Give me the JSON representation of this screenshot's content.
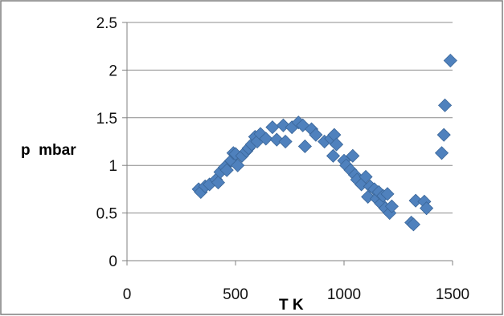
{
  "chart_data": {
    "type": "scatter",
    "title": "",
    "xlabel": "T K",
    "ylabel": "p  mbar",
    "xlim": [
      0,
      1500
    ],
    "ylim": [
      0,
      2.5
    ],
    "x_ticks": [
      "0",
      "500",
      "1000",
      "1500"
    ],
    "y_ticks": [
      "0",
      "0.5",
      "1",
      "1.5",
      "2",
      "2.5"
    ],
    "grid": "horizontal",
    "legend": "none",
    "colors": {
      "marker": "#4F81BD",
      "marker_edge": "#3A6699",
      "grid": "#8C8C8C",
      "axis": "#808080",
      "frame": "#7F7F7F"
    },
    "series": [
      {
        "points": [
          [
            330,
            0.75
          ],
          [
            340,
            0.72
          ],
          [
            360,
            0.78
          ],
          [
            380,
            0.8
          ],
          [
            410,
            0.85
          ],
          [
            420,
            0.82
          ],
          [
            430,
            0.93
          ],
          [
            450,
            0.98
          ],
          [
            460,
            0.95
          ],
          [
            480,
            1.05
          ],
          [
            490,
            1.13
          ],
          [
            500,
            1.12
          ],
          [
            510,
            1.0
          ],
          [
            530,
            1.1
          ],
          [
            550,
            1.15
          ],
          [
            560,
            1.18
          ],
          [
            575,
            1.22
          ],
          [
            590,
            1.3
          ],
          [
            600,
            1.25
          ],
          [
            615,
            1.33
          ],
          [
            640,
            1.28
          ],
          [
            670,
            1.4
          ],
          [
            690,
            1.27
          ],
          [
            720,
            1.42
          ],
          [
            730,
            1.25
          ],
          [
            760,
            1.4
          ],
          [
            790,
            1.45
          ],
          [
            810,
            1.42
          ],
          [
            820,
            1.2
          ],
          [
            850,
            1.38
          ],
          [
            870,
            1.32
          ],
          [
            910,
            1.25
          ],
          [
            940,
            1.28
          ],
          [
            950,
            1.1
          ],
          [
            955,
            1.32
          ],
          [
            965,
            1.22
          ],
          [
            1000,
            1.05
          ],
          [
            1010,
            1.0
          ],
          [
            1030,
            0.95
          ],
          [
            1040,
            1.1
          ],
          [
            1050,
            0.9
          ],
          [
            1060,
            0.85
          ],
          [
            1080,
            0.8
          ],
          [
            1100,
            0.88
          ],
          [
            1110,
            0.67
          ],
          [
            1120,
            0.78
          ],
          [
            1140,
            0.75
          ],
          [
            1150,
            0.65
          ],
          [
            1160,
            0.72
          ],
          [
            1170,
            0.6
          ],
          [
            1180,
            0.68
          ],
          [
            1190,
            0.55
          ],
          [
            1200,
            0.7
          ],
          [
            1210,
            0.5
          ],
          [
            1220,
            0.57
          ],
          [
            1310,
            0.4
          ],
          [
            1320,
            0.38
          ],
          [
            1330,
            0.63
          ],
          [
            1370,
            0.62
          ],
          [
            1380,
            0.55
          ],
          [
            1450,
            1.13
          ],
          [
            1460,
            1.32
          ],
          [
            1465,
            1.63
          ],
          [
            1490,
            2.1
          ]
        ]
      }
    ]
  }
}
